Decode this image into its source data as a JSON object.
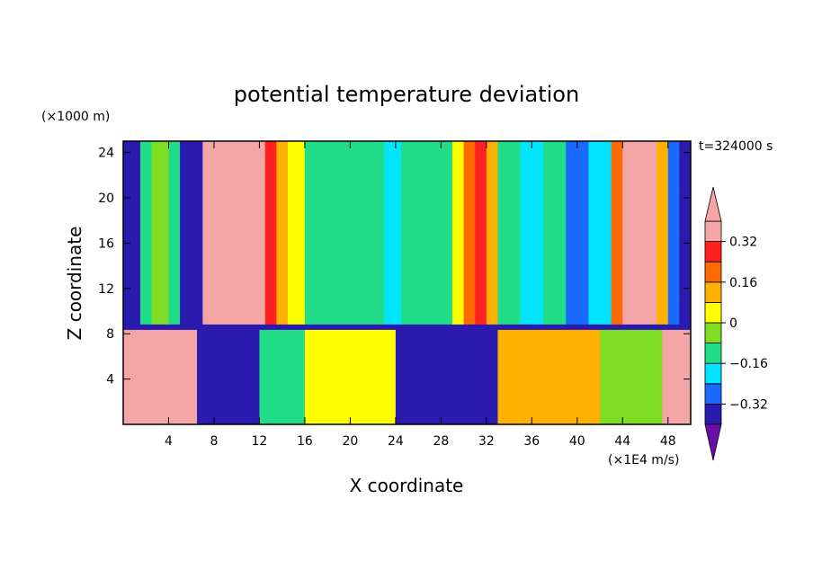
{
  "chart_data": {
    "type": "heatmap",
    "title": "potential temperature deviation",
    "xlabel": "X coordinate",
    "ylabel": "Z coordinate",
    "x_unit": "(×1E4 m/s)",
    "y_unit": "(×1000 m)",
    "time_label": "t=324000 s",
    "xlim": [
      0,
      50
    ],
    "ylim": [
      0,
      25
    ],
    "x_ticks": [
      4,
      8,
      12,
      16,
      20,
      24,
      28,
      32,
      36,
      40,
      44,
      48
    ],
    "y_ticks": [
      4,
      8,
      12,
      16,
      20,
      24
    ],
    "colorbar": {
      "levels": [
        -0.4,
        -0.32,
        -0.24,
        -0.16,
        -0.08,
        0,
        0.08,
        0.16,
        0.24,
        0.32,
        0.4
      ],
      "tick_labels": [
        "0.32",
        "0.16",
        "0",
        "−0.16",
        "−0.32"
      ],
      "tick_values": [
        0.32,
        0.16,
        0,
        -0.16,
        -0.32
      ],
      "colors_low_to_high": [
        "#6a0dad",
        "#2a1ab0",
        "#1a6aff",
        "#00e5ff",
        "#22dd88",
        "#7edd22",
        "#ffff00",
        "#ffb000",
        "#ff6a00",
        "#ff2020",
        "#f4a6a6"
      ]
    },
    "upper_columns": [
      {
        "x": [
          0,
          1.5
        ],
        "value": -0.4
      },
      {
        "x": [
          1.5,
          2.5
        ],
        "value": -0.12
      },
      {
        "x": [
          2.5,
          4
        ],
        "value": -0.02
      },
      {
        "x": [
          4,
          5
        ],
        "value": -0.15
      },
      {
        "x": [
          5,
          7
        ],
        "value": -0.36
      },
      {
        "x": [
          7,
          11.5
        ],
        "value": 0.44
      },
      {
        "x": [
          11.5,
          12.5
        ],
        "value": 0.34
      },
      {
        "x": [
          12.5,
          13.5
        ],
        "value": 0.24
      },
      {
        "x": [
          13.5,
          14.5
        ],
        "value": 0.14
      },
      {
        "x": [
          14.5,
          16
        ],
        "value": 0.04
      },
      {
        "x": [
          16,
          17.5
        ],
        "value": -0.1
      },
      {
        "x": [
          17.5,
          23
        ],
        "value": -0.15
      },
      {
        "x": [
          23,
          24.5
        ],
        "value": -0.22
      },
      {
        "x": [
          24.5,
          29
        ],
        "value": -0.14
      },
      {
        "x": [
          29,
          30
        ],
        "value": 0.06
      },
      {
        "x": [
          30,
          31
        ],
        "value": 0.22
      },
      {
        "x": [
          31,
          32
        ],
        "value": 0.3
      },
      {
        "x": [
          32,
          33
        ],
        "value": 0.14
      },
      {
        "x": [
          33,
          35
        ],
        "value": -0.15
      },
      {
        "x": [
          35,
          37
        ],
        "value": -0.22
      },
      {
        "x": [
          37,
          39
        ],
        "value": -0.12
      },
      {
        "x": [
          39,
          41
        ],
        "value": -0.3
      },
      {
        "x": [
          41,
          43
        ],
        "value": -0.18
      },
      {
        "x": [
          43,
          44
        ],
        "value": 0.18
      },
      {
        "x": [
          44,
          47
        ],
        "value": 0.36
      },
      {
        "x": [
          47,
          48
        ],
        "value": 0.08
      },
      {
        "x": [
          48,
          49
        ],
        "value": -0.3
      },
      {
        "x": [
          49,
          50
        ],
        "value": -0.4
      }
    ],
    "lower_columns": [
      {
        "x": [
          0,
          6.5
        ],
        "value": 0.44
      },
      {
        "x": [
          6.5,
          12
        ],
        "value": -0.4
      },
      {
        "x": [
          12,
          16
        ],
        "value": -0.1
      },
      {
        "x": [
          16,
          24
        ],
        "value": 0.05
      },
      {
        "x": [
          24,
          28
        ],
        "value": -0.4
      },
      {
        "x": [
          28,
          33
        ],
        "value": -0.36
      },
      {
        "x": [
          33,
          42
        ],
        "value": 0.1
      },
      {
        "x": [
          42,
          47.5
        ],
        "value": -0.05
      },
      {
        "x": [
          47.5,
          50
        ],
        "value": 0.44
      }
    ],
    "interface_z": 8.5
  }
}
